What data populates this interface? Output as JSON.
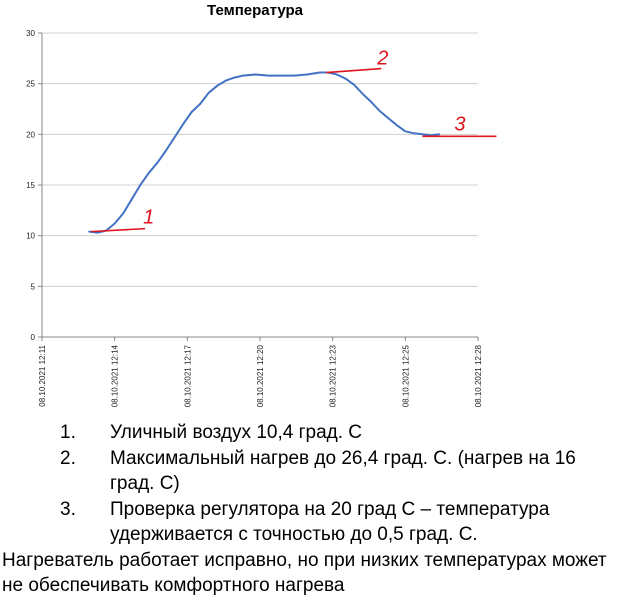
{
  "chart_data": {
    "type": "line",
    "title": "Температура",
    "ylim": [
      0,
      30
    ],
    "y_ticks": [
      "0",
      "5",
      "10",
      "15",
      "20",
      "25",
      "30"
    ],
    "x_ticks": [
      "08.10.2021 12:11",
      "08.10.2021 12:14",
      "08.10.2021 12:17",
      "08.10.2021 12:20",
      "08.10.2021 12:23",
      "08.10.2021 12:25",
      "08.10.2021 12:28"
    ],
    "grid": "horizontal",
    "legend": "none",
    "line_color": "#4472c4",
    "annotation_color": "#e0141e",
    "series": [
      {
        "x": [
          "12:13:00",
          "12:13:20",
          "12:13:40",
          "12:14:00",
          "12:14:20",
          "12:14:40",
          "12:15:00",
          "12:15:20",
          "12:15:40",
          "12:16:00",
          "12:16:20",
          "12:16:40",
          "12:17:00",
          "12:17:20",
          "12:17:40",
          "12:18:00",
          "12:18:20",
          "12:18:40",
          "12:19:00",
          "12:19:30",
          "12:20:00",
          "12:20:30",
          "12:21:00",
          "12:21:30",
          "12:22:00",
          "12:22:20",
          "12:22:40",
          "12:23:00",
          "12:23:20",
          "12:23:40",
          "12:24:00",
          "12:24:20",
          "12:24:40",
          "12:25:00",
          "12:25:20",
          "12:25:40",
          "12:26:00",
          "12:26:20",
          "12:26:40"
        ],
        "values": [
          10.4,
          10.3,
          10.5,
          11.2,
          12.2,
          13.6,
          15.0,
          16.2,
          17.2,
          18.4,
          19.7,
          21.0,
          22.2,
          23.0,
          24.1,
          24.8,
          25.3,
          25.6,
          25.8,
          25.9,
          25.8,
          25.8,
          25.8,
          25.9,
          26.1,
          26.1,
          25.9,
          25.5,
          24.9,
          24.0,
          23.2,
          22.3,
          21.6,
          20.9,
          20.3,
          20.1,
          20.0,
          19.9,
          20.0
        ]
      }
    ],
    "annotations": [
      {
        "label": "1",
        "x": "12:13:05",
        "y": 10.4
      },
      {
        "label": "2",
        "x": "12:22:15",
        "y": 26.1
      },
      {
        "label": "3",
        "x": "12:26:00",
        "y": 19.8
      }
    ]
  },
  "notes": {
    "items": [
      {
        "num": "1.",
        "text": "Уличный воздух 10,4 град. С"
      },
      {
        "num": "2.",
        "text": "Максимальный нагрев до 26,4 град. С. (нагрев на 16 град. С)"
      },
      {
        "num": "3.",
        "text": "Проверка регулятора на 20 град С – температура удерживается с точностью до 0,5 град. С."
      }
    ],
    "conclusion": "Нагреватель работает исправно, но при низких температурах может не обеспечивать комфортного нагрева"
  }
}
